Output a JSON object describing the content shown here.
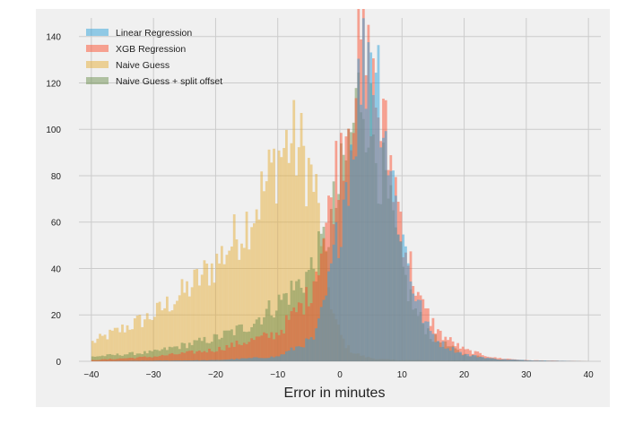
{
  "chart_data": {
    "type": "histogram",
    "title": "",
    "xlabel": "Error in minutes",
    "ylabel": "",
    "xlim": [
      -42,
      42
    ],
    "ylim": [
      0,
      148
    ],
    "x_ticks": [
      -40,
      -30,
      -20,
      -10,
      0,
      10,
      20,
      30,
      40
    ],
    "x_tick_labels": [
      "−40",
      "−30",
      "−20",
      "−10",
      "0",
      "10",
      "20",
      "30",
      "40"
    ],
    "y_ticks": [
      0,
      20,
      40,
      60,
      80,
      100,
      120,
      140
    ],
    "y_tick_labels": [
      "0",
      "20",
      "40",
      "60",
      "80",
      "100",
      "120",
      "140"
    ],
    "grid": true,
    "legend_position": "top-left",
    "bin_width": 0.4,
    "series": [
      {
        "name": "Linear Regression",
        "color": "#30a2da",
        "opacity": 0.5,
        "anchors": [
          [
            -40,
            0
          ],
          [
            -20,
            0.5
          ],
          [
            -10,
            2
          ],
          [
            -4,
            10
          ],
          [
            -2,
            30
          ],
          [
            0,
            60
          ],
          [
            2,
            95
          ],
          [
            3.5,
            125
          ],
          [
            5,
            140
          ],
          [
            6,
            128
          ],
          [
            7,
            110
          ],
          [
            8,
            85
          ],
          [
            10,
            55
          ],
          [
            12,
            30
          ],
          [
            14,
            15
          ],
          [
            16,
            8
          ],
          [
            20,
            3
          ],
          [
            25,
            1
          ],
          [
            30,
            0.5
          ],
          [
            40,
            0
          ]
        ]
      },
      {
        "name": "XGB Regression",
        "color": "#fc4f30",
        "opacity": 0.5,
        "anchors": [
          [
            -40,
            0.5
          ],
          [
            -30,
            2
          ],
          [
            -20,
            5
          ],
          [
            -10,
            12
          ],
          [
            -5,
            28
          ],
          [
            -2,
            60
          ],
          [
            0,
            92
          ],
          [
            2,
            115
          ],
          [
            3.5,
            135
          ],
          [
            5,
            120
          ],
          [
            7,
            100
          ],
          [
            9,
            75
          ],
          [
            11,
            45
          ],
          [
            13,
            25
          ],
          [
            16,
            12
          ],
          [
            20,
            5
          ],
          [
            25,
            1.5
          ],
          [
            30,
            0.5
          ],
          [
            40,
            0
          ]
        ]
      },
      {
        "name": "Naive Guess",
        "color": "#e5ae38",
        "opacity": 0.5,
        "anchors": [
          [
            -40,
            8
          ],
          [
            -35,
            14
          ],
          [
            -30,
            20
          ],
          [
            -25,
            30
          ],
          [
            -20,
            42
          ],
          [
            -15,
            60
          ],
          [
            -12,
            75
          ],
          [
            -10,
            88
          ],
          [
            -8,
            95
          ],
          [
            -6,
            90
          ],
          [
            -4,
            75
          ],
          [
            -3,
            55
          ],
          [
            -2,
            35
          ],
          [
            -1,
            20
          ],
          [
            0,
            12
          ],
          [
            1,
            7
          ],
          [
            2,
            4
          ],
          [
            4,
            2
          ],
          [
            6,
            1
          ],
          [
            10,
            0.5
          ],
          [
            40,
            0
          ]
        ]
      },
      {
        "name": "Naive Guess + split offset",
        "color": "#6d904f",
        "opacity": 0.5,
        "anchors": [
          [
            -40,
            2
          ],
          [
            -30,
            4
          ],
          [
            -20,
            10
          ],
          [
            -15,
            15
          ],
          [
            -10,
            25
          ],
          [
            -8,
            30
          ],
          [
            -6,
            35
          ],
          [
            -4,
            42
          ],
          [
            -2,
            55
          ],
          [
            0,
            75
          ],
          [
            2,
            100
          ],
          [
            3.5,
            120
          ],
          [
            4.5,
            110
          ],
          [
            6,
            90
          ],
          [
            8,
            65
          ],
          [
            10,
            40
          ],
          [
            12,
            22
          ],
          [
            15,
            10
          ],
          [
            20,
            3
          ],
          [
            25,
            1
          ],
          [
            30,
            0.3
          ],
          [
            40,
            0
          ]
        ]
      }
    ]
  }
}
